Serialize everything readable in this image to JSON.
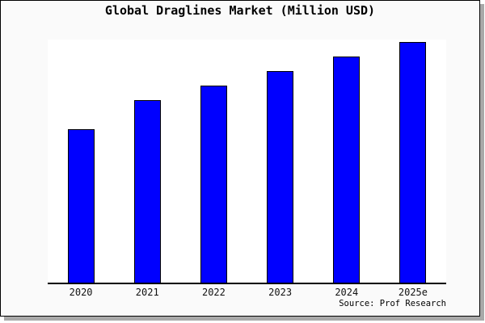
{
  "window": {
    "background": "#fafafa",
    "border_color": "#000000",
    "shadow_color": "#a9a9a9",
    "plot_background": "#ffffff"
  },
  "chart_data": {
    "type": "bar",
    "title": "Global Draglines Market (Million USD)",
    "categories": [
      "2020",
      "2021",
      "2022",
      "2023",
      "2024",
      "2025e"
    ],
    "values": [
      63,
      75,
      81,
      87,
      93,
      99
    ],
    "values_note": "No y-axis, gridlines or data labels shown in the chart; values are estimated relative bar heights as percent of plot height (tallest bar ~99%)",
    "xlabel": "",
    "ylabel": "",
    "ylim": [
      0,
      100
    ],
    "grid": false,
    "legend": false,
    "bar_color": "#0000ff",
    "bar_edge_color": "#000000",
    "axis_line_color": "#000000",
    "source": "Source: Prof Research"
  }
}
